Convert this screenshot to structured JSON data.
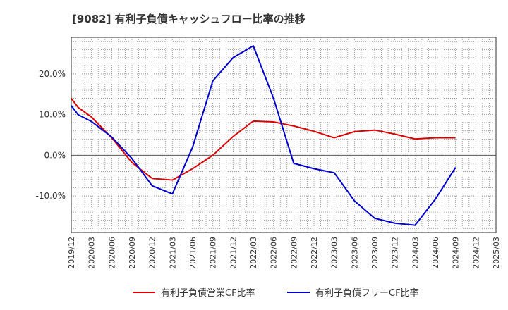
{
  "chart_data": {
    "type": "line",
    "title": "[9082]  有利子負債キャッシュフロー比率の推移",
    "xlabel": "",
    "ylabel": "",
    "x": [
      "2019/12",
      "2020/03",
      "2020/06",
      "2020/09",
      "2020/12",
      "2021/03",
      "2021/06",
      "2021/09",
      "2021/12",
      "2022/03",
      "2022/06",
      "2022/09",
      "2022/12",
      "2023/03",
      "2023/06",
      "2023/09",
      "2023/12",
      "2024/03",
      "2024/06",
      "2024/09",
      "2024/12",
      "2025/03"
    ],
    "ylim": [
      -19,
      29
    ],
    "yticks": [
      {
        "value": 20,
        "label": "20.0%"
      },
      {
        "value": 10,
        "label": "10.0%"
      },
      {
        "value": 0,
        "label": "0.0%"
      },
      {
        "value": -10,
        "label": "-10.0%"
      }
    ],
    "grid": true,
    "legend_position": "bottom",
    "series": [
      {
        "name": "有利子負債営業CF比率",
        "color": "#dd0000",
        "points": [
          {
            "x": "2019/12",
            "y": 14.0
          },
          {
            "x": "2020/01",
            "y": 11.8
          },
          {
            "x": "2020/03",
            "y": 9.4
          },
          {
            "x": "2020/06",
            "y": 4.3
          },
          {
            "x": "2020/09",
            "y": -1.8
          },
          {
            "x": "2020/12",
            "y": -5.7
          },
          {
            "x": "2021/03",
            "y": -6.1
          },
          {
            "x": "2021/06",
            "y": -3.3
          },
          {
            "x": "2021/09",
            "y": 0.0
          },
          {
            "x": "2021/12",
            "y": 4.6
          },
          {
            "x": "2022/03",
            "y": 8.4
          },
          {
            "x": "2022/06",
            "y": 8.2
          },
          {
            "x": "2022/09",
            "y": 7.2
          },
          {
            "x": "2022/12",
            "y": 5.9
          },
          {
            "x": "2023/03",
            "y": 4.3
          },
          {
            "x": "2023/06",
            "y": 5.8
          },
          {
            "x": "2023/09",
            "y": 6.2
          },
          {
            "x": "2023/12",
            "y": 5.2
          },
          {
            "x": "2024/03",
            "y": 4.0
          },
          {
            "x": "2024/06",
            "y": 4.3
          },
          {
            "x": "2024/09",
            "y": 4.3
          }
        ]
      },
      {
        "name": "有利子負債フリーCF比率",
        "color": "#0000cc",
        "points": [
          {
            "x": "2019/12",
            "y": 12.2
          },
          {
            "x": "2020/01",
            "y": 10.0
          },
          {
            "x": "2020/03",
            "y": 8.3
          },
          {
            "x": "2020/06",
            "y": 4.5
          },
          {
            "x": "2020/09",
            "y": -0.8
          },
          {
            "x": "2020/12",
            "y": -7.5
          },
          {
            "x": "2021/03",
            "y": -9.5
          },
          {
            "x": "2021/06",
            "y": 2.0
          },
          {
            "x": "2021/09",
            "y": 18.3
          },
          {
            "x": "2021/12",
            "y": 24.0
          },
          {
            "x": "2022/03",
            "y": 26.9
          },
          {
            "x": "2022/06",
            "y": 14.0
          },
          {
            "x": "2022/09",
            "y": -2.0
          },
          {
            "x": "2022/12",
            "y": -3.3
          },
          {
            "x": "2023/03",
            "y": -4.3
          },
          {
            "x": "2023/06",
            "y": -11.2
          },
          {
            "x": "2023/09",
            "y": -15.5
          },
          {
            "x": "2023/12",
            "y": -16.7
          },
          {
            "x": "2024/03",
            "y": -17.2
          },
          {
            "x": "2024/06",
            "y": -10.8
          },
          {
            "x": "2024/09",
            "y": -3.0
          }
        ]
      }
    ]
  }
}
